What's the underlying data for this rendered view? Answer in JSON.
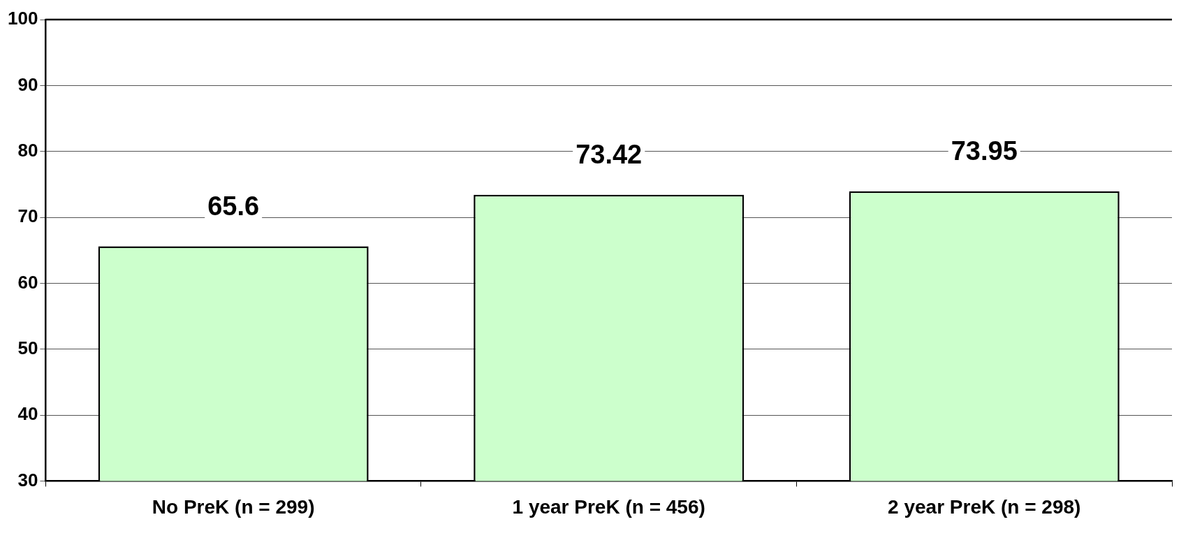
{
  "chart_data": {
    "type": "bar",
    "categories": [
      "No PreK (n = 299)",
      "1 year PreK (n = 456)",
      "2 year PreK (n = 298)"
    ],
    "values": [
      65.6,
      73.42,
      73.95
    ],
    "color": "#ccffcc",
    "ylim": [
      30,
      100
    ],
    "yticks": [
      30,
      40,
      50,
      60,
      70,
      80,
      90,
      100
    ],
    "grid": "y",
    "data_labels": true,
    "legend": false
  }
}
